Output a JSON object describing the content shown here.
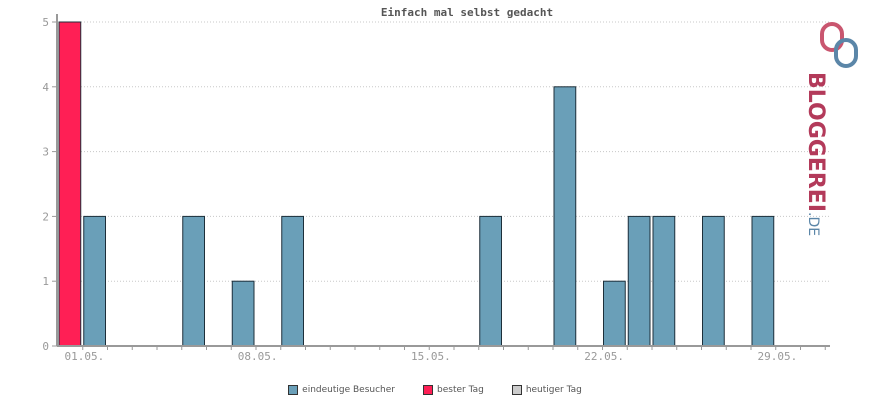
{
  "chart_data": {
    "type": "bar",
    "title": "Einfach mal selbst gedacht",
    "x_tick_labels": [
      "01.05.",
      "08.05.",
      "15.05.",
      "22.05.",
      "29.05."
    ],
    "y_ticks": [
      0,
      1,
      2,
      3,
      4,
      5
    ],
    "ylim": [
      0,
      5
    ],
    "grid": true,
    "days": 31,
    "series": [
      {
        "name": "eindeutige Besucher",
        "color": "#6a9fb8",
        "bars": [
          {
            "day": 2,
            "value": 2
          },
          {
            "day": 6,
            "value": 2
          },
          {
            "day": 8,
            "value": 1
          },
          {
            "day": 10,
            "value": 2
          },
          {
            "day": 18,
            "value": 2
          },
          {
            "day": 21,
            "value": 4
          },
          {
            "day": 23,
            "value": 1
          },
          {
            "day": 24,
            "value": 2
          },
          {
            "day": 25,
            "value": 2
          },
          {
            "day": 27,
            "value": 2
          },
          {
            "day": 29,
            "value": 2
          }
        ]
      },
      {
        "name": "bester Tag",
        "color": "#ff1f55",
        "bars": [
          {
            "day": 1,
            "value": 5
          }
        ]
      },
      {
        "name": "heutiger Tag",
        "color": "#cccccc",
        "bars": []
      }
    ],
    "legend_placement": "bottom-center"
  },
  "logo": {
    "brand": "BLOGGEREI",
    "suffix": ".DE",
    "brand_color": "#b33a5a",
    "suffix_color": "#5b86a8"
  }
}
